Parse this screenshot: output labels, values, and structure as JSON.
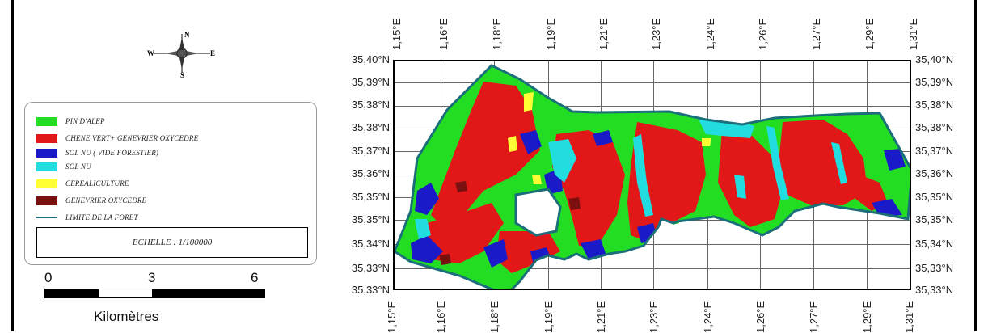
{
  "compass": {
    "n": "N",
    "s": "S",
    "e": "E",
    "w": "W"
  },
  "legend": {
    "items": [
      {
        "label": "PIN D'ALEP",
        "color": "#22dd22"
      },
      {
        "label": "CHENE VERT+ GENEVRIER OXYCEDRE",
        "color": "#e21818"
      },
      {
        "label": "SOL NU ( VIDE FORESTIER)",
        "color": "#1a1ac8"
      },
      {
        "label": "SOL NU",
        "color": "#22dde0"
      },
      {
        "label": "CEREALICULTURE",
        "color": "#ffff33"
      },
      {
        "label": "GENEVRIER OXYCEDRE",
        "color": "#7a1010"
      },
      {
        "label": "LIMITE DE LA FORET",
        "color": "#1a6f7a",
        "kind": "line"
      }
    ],
    "scale_text": "ECHELLE : 1/100000"
  },
  "scalebar": {
    "labels": [
      "0",
      "3",
      "6"
    ],
    "unit": "Kilomètres"
  },
  "map": {
    "lon_labels": [
      "1,15°E",
      "1,16°E",
      "1,18°E",
      "1,19°E",
      "1,21°E",
      "1,23°E",
      "1,24°E",
      "1,26°E",
      "1,27°E",
      "1,29°E",
      "1,31°E"
    ],
    "lat_labels": [
      "35,40°N",
      "35,39°N",
      "35,38°N",
      "35,38°N",
      "35,37°N",
      "35,36°N",
      "35,35°N",
      "35,35°N",
      "35,34°N",
      "35,33°N",
      "35,33°N"
    ]
  }
}
